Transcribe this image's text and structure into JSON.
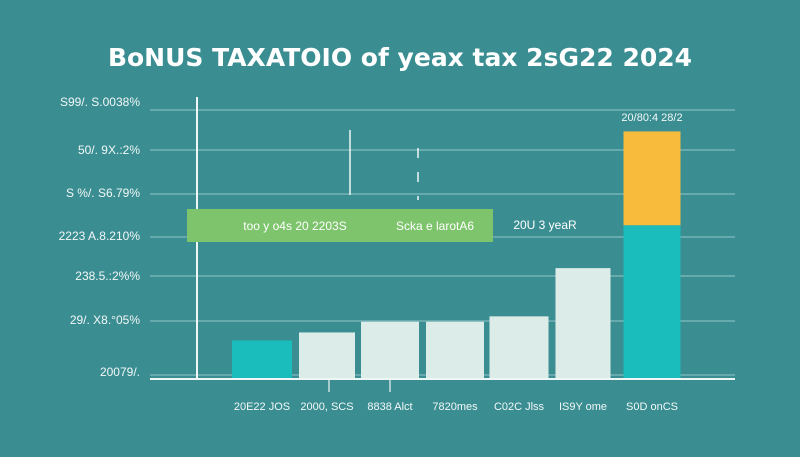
{
  "chart_data": {
    "type": "bar",
    "title": "BoNUS TAXATOIO of yeax tax 2sG22 2024",
    "xlabel": "",
    "ylabel": "",
    "ylim": [
      0,
      100
    ],
    "grid": true,
    "y_tick_labels": [
      "S99/. S.0038%",
      "50/. 9X.:2%",
      "S %/. S6.79%",
      "2223 A.8.210%",
      "238.5.:2%%",
      "29/. X8.°05%",
      "20079/."
    ],
    "categories": [
      "20E22 JOS",
      "2000, SCS",
      "8838 Alct",
      "7820mes",
      "C02C Jlss",
      "IS9Y ome",
      "S0D onCS"
    ],
    "series": [
      {
        "values": [
          14,
          17,
          21,
          21,
          23,
          41,
          57
        ],
        "colors": [
          "#1bbcbc",
          "#dcede9",
          "#dcede9",
          "#dcede9",
          "#dcede9",
          "#dcede9",
          "#1bbcbc"
        ]
      },
      {
        "values": [
          0,
          0,
          0,
          0,
          0,
          0,
          35
        ],
        "colors": [
          "#f8bb3c",
          "#f8bb3c",
          "#f8bb3c",
          "#f8bb3c",
          "#f8bb3c",
          "#f8bb3c",
          "#f8bb3c"
        ]
      }
    ],
    "bar_top_label": "20/80:4 28/2",
    "banner": {
      "text_left": "too y o4s 20 2203S",
      "text_right": "Scka e larotA6",
      "color": "#7dc46c"
    },
    "side_note": "20U 3 yeaR",
    "background": "#3a8e92"
  }
}
